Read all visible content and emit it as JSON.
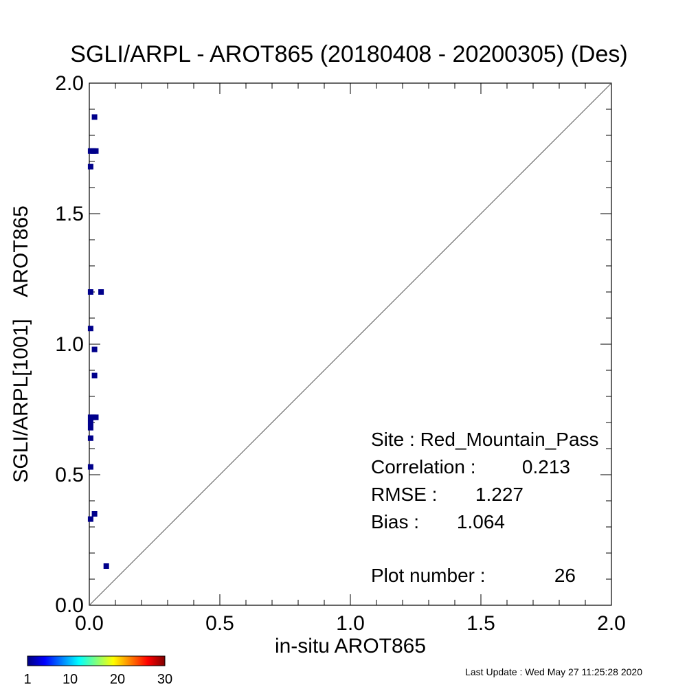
{
  "chart_data": {
    "type": "scatter",
    "title": "SGLI/ARPL - AROT865 (20180408 - 20200305) (Des)",
    "xlabel": "in-situ AROT865",
    "ylabel": "SGLI/ARPL[1001]    AROT865",
    "xlim": [
      0.0,
      2.0
    ],
    "ylim": [
      0.0,
      2.0
    ],
    "xticks": [
      "0.0",
      "0.5",
      "1.0",
      "1.5",
      "2.0"
    ],
    "yticks": [
      "0.0",
      "0.5",
      "1.0",
      "1.5",
      "2.0"
    ],
    "grid": false,
    "one_to_one_line": true,
    "marker_color": "#00008b",
    "points": [
      {
        "x": 0.02,
        "y": 1.87
      },
      {
        "x": 0.005,
        "y": 1.74
      },
      {
        "x": 0.015,
        "y": 1.74
      },
      {
        "x": 0.025,
        "y": 1.74
      },
      {
        "x": 0.005,
        "y": 1.68
      },
      {
        "x": 0.005,
        "y": 1.2
      },
      {
        "x": 0.045,
        "y": 1.2
      },
      {
        "x": 0.005,
        "y": 1.06
      },
      {
        "x": 0.02,
        "y": 0.98
      },
      {
        "x": 0.02,
        "y": 0.88
      },
      {
        "x": 0.005,
        "y": 0.72
      },
      {
        "x": 0.015,
        "y": 0.72
      },
      {
        "x": 0.025,
        "y": 0.72
      },
      {
        "x": 0.005,
        "y": 0.7
      },
      {
        "x": 0.005,
        "y": 0.68
      },
      {
        "x": 0.005,
        "y": 0.64
      },
      {
        "x": 0.005,
        "y": 0.53
      },
      {
        "x": 0.02,
        "y": 0.35
      },
      {
        "x": 0.005,
        "y": 0.33
      },
      {
        "x": 0.065,
        "y": 0.15
      }
    ],
    "stats": [
      {
        "label": "Site : Red_Mountain_Pass"
      },
      {
        "label": "Correlation :",
        "value": "0.213"
      },
      {
        "label": "RMSE :",
        "value": "1.227"
      },
      {
        "label": "Bias :",
        "value": "1.064"
      },
      {
        "label": "Plot number :",
        "value": "26"
      }
    ],
    "colorbar": {
      "min": 1,
      "max": 30,
      "tick_labels": [
        "1",
        "10",
        "20",
        "30"
      ],
      "tick_values": [
        1,
        10,
        20,
        30
      ],
      "colormap": [
        "#00007f",
        "#0000ff",
        "#007fff",
        "#00ffff",
        "#7fff7f",
        "#ffff00",
        "#ff7f00",
        "#ff0000",
        "#7f0000"
      ]
    },
    "footer": "Last Update : Wed May 27 11:25:28 2020"
  }
}
